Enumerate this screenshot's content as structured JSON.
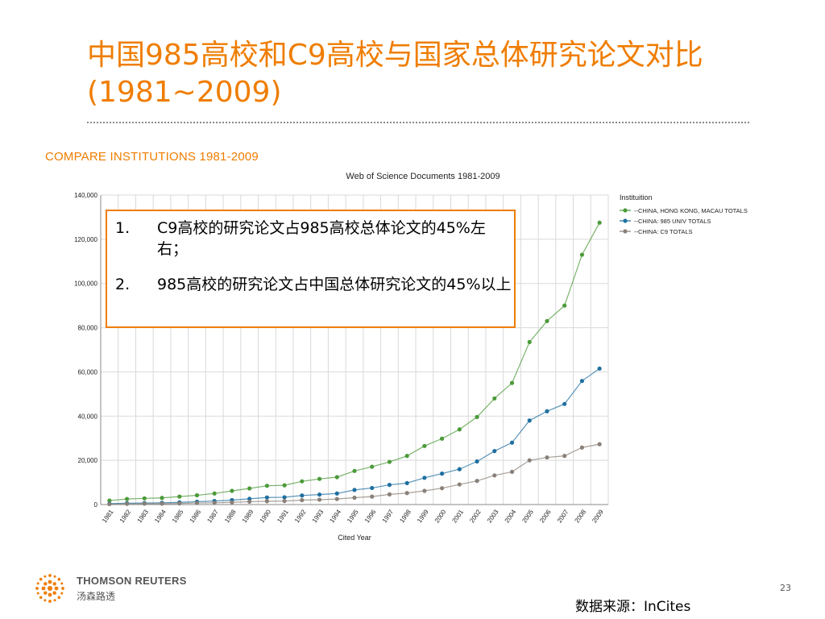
{
  "slide": {
    "title": "中国985高校和C9高校与国家总体研究论文对比(1981~2009)",
    "section_heading": "COMPARE INSTITUTIONS 1981-2009",
    "notes": [
      {
        "num": "1.",
        "text": "C9高校的研究论文占985高校总体论文的45%左右；"
      },
      {
        "num": "2.",
        "text": "985高校的研究论文占中国总体研究论文的45%以上"
      }
    ],
    "brand_name": "THOMSON REUTERS",
    "brand_sub": "汤森路透",
    "page_number": "23",
    "source": "数据来源：InCites"
  },
  "colors": {
    "accent": "#ef7d00",
    "china_total": "#4c9a3a",
    "univ_985": "#1f6fa0",
    "c9": "#8a8078"
  },
  "chart_data": {
    "type": "line",
    "title": "Web of Science Documents 1981-2009",
    "xlabel": "Cited Year",
    "ylabel": "",
    "ylim": [
      0,
      140000
    ],
    "yticks": [
      0,
      20000,
      40000,
      60000,
      80000,
      100000,
      120000,
      140000
    ],
    "ytick_labels": [
      "0",
      "20,000",
      "40,000",
      "60,000",
      "80,000",
      "100,000",
      "120,000",
      "140,000"
    ],
    "grid": true,
    "legend_title": "Instituition",
    "legend_position": "top-right",
    "x": [
      "1981",
      "1982",
      "1983",
      "1984",
      "1985",
      "1986",
      "1987",
      "1988",
      "1989",
      "1990",
      "1991",
      "1992",
      "1993",
      "1994",
      "1995",
      "1996",
      "1997",
      "1998",
      "1999",
      "2000",
      "2001",
      "2002",
      "2003",
      "2004",
      "2005",
      "2006",
      "2007",
      "2008",
      "2009"
    ],
    "series": [
      {
        "name": "--CHINA, HONG KONG, MACAU TOTALS",
        "color": "#4c9a3a",
        "values": [
          1800,
          2500,
          2800,
          3000,
          3600,
          4200,
          5000,
          6200,
          7300,
          8500,
          8700,
          10500,
          11600,
          12400,
          15200,
          17100,
          19300,
          22000,
          26500,
          29800,
          34000,
          39600,
          48000,
          55000,
          73500,
          83000,
          90000,
          113000,
          127500
        ]
      },
      {
        "name": "--CHINA: 985 UNIV TOTALS",
        "color": "#1f6fa0",
        "values": [
          400,
          600,
          700,
          800,
          1000,
          1300,
          1600,
          2000,
          2600,
          3200,
          3300,
          4100,
          4500,
          5000,
          6600,
          7500,
          8900,
          9700,
          12100,
          14000,
          16000,
          19500,
          24200,
          28000,
          38000,
          42200,
          45500,
          55900,
          61500
        ]
      },
      {
        "name": "--CHINA: C9 TOTALS",
        "color": "#8a8078",
        "values": [
          200,
          300,
          400,
          400,
          500,
          700,
          800,
          1000,
          1300,
          1500,
          1600,
          2000,
          2200,
          2500,
          3100,
          3600,
          4600,
          5200,
          6200,
          7400,
          9100,
          10700,
          13200,
          14800,
          20000,
          21300,
          22000,
          25800,
          27300
        ]
      }
    ]
  }
}
